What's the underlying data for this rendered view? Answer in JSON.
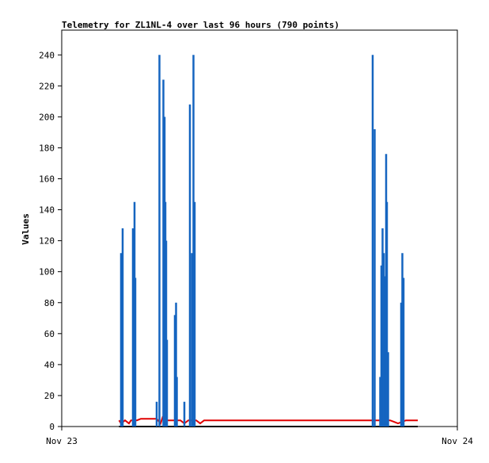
{
  "chart_data": {
    "type": "line",
    "title": "Telemetry for ZL1NL-4 over last 96 hours (790 points)",
    "xlabel": "",
    "ylabel": "Values",
    "ylim": [
      0,
      256
    ],
    "xlim": [
      0,
      1
    ],
    "x_tick_labels": [
      {
        "x": 0,
        "label": "Nov 23"
      },
      {
        "x": 1,
        "label": "Nov 24"
      }
    ],
    "y_ticks": [
      0,
      20,
      40,
      60,
      80,
      100,
      120,
      140,
      160,
      180,
      200,
      220,
      240
    ],
    "grid": false,
    "legend": "none",
    "colors": {
      "blue": "#1565c0",
      "red": "#e00000",
      "black": "#000000"
    },
    "series": [
      {
        "color": "#1565c0",
        "spikes": [
          [
            0.15,
            112
          ],
          [
            0.154,
            128
          ],
          [
            0.18,
            128
          ],
          [
            0.184,
            145
          ],
          [
            0.186,
            96
          ],
          [
            0.24,
            16
          ],
          [
            0.247,
            240
          ],
          [
            0.257,
            224
          ],
          [
            0.26,
            200
          ],
          [
            0.262,
            145
          ],
          [
            0.264,
            120
          ],
          [
            0.266,
            56
          ],
          [
            0.286,
            72
          ],
          [
            0.289,
            80
          ],
          [
            0.291,
            32
          ],
          [
            0.31,
            16
          ],
          [
            0.324,
            208
          ],
          [
            0.329,
            112
          ],
          [
            0.333,
            240
          ],
          [
            0.336,
            145
          ],
          [
            0.786,
            240
          ],
          [
            0.791,
            192
          ],
          [
            0.805,
            32
          ],
          [
            0.808,
            104
          ],
          [
            0.811,
            128
          ],
          [
            0.814,
            112
          ],
          [
            0.817,
            97
          ],
          [
            0.82,
            176
          ],
          [
            0.822,
            145
          ],
          [
            0.825,
            48
          ],
          [
            0.858,
            80
          ],
          [
            0.861,
            112
          ],
          [
            0.864,
            96
          ]
        ]
      },
      {
        "color": "#e00000",
        "points": [
          [
            0.145,
            4
          ],
          [
            0.15,
            2
          ],
          [
            0.16,
            4
          ],
          [
            0.17,
            2
          ],
          [
            0.175,
            4
          ],
          [
            0.19,
            4
          ],
          [
            0.2,
            5
          ],
          [
            0.24,
            5
          ],
          [
            0.25,
            2
          ],
          [
            0.255,
            6
          ],
          [
            0.265,
            4
          ],
          [
            0.3,
            4
          ],
          [
            0.31,
            2
          ],
          [
            0.32,
            4
          ],
          [
            0.34,
            4
          ],
          [
            0.35,
            2
          ],
          [
            0.36,
            4
          ],
          [
            0.78,
            4
          ],
          [
            0.83,
            4
          ],
          [
            0.84,
            3
          ],
          [
            0.85,
            2
          ],
          [
            0.87,
            4
          ],
          [
            0.9,
            4
          ]
        ]
      },
      {
        "color": "#000000",
        "points": [
          [
            0.145,
            0
          ],
          [
            0.9,
            0
          ]
        ]
      }
    ]
  }
}
